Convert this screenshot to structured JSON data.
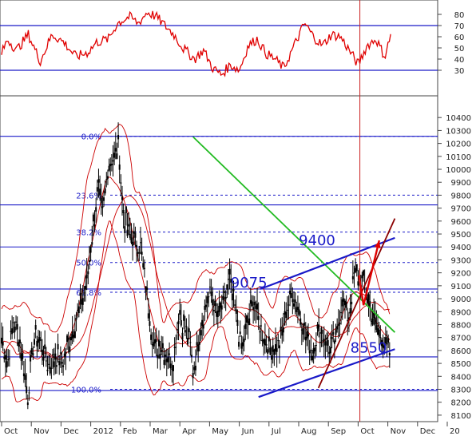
{
  "chart_data": {
    "type": "candlestick",
    "instrument": "",
    "months": [
      "Oct",
      "Nov",
      "Dec",
      "2012",
      "Feb",
      "Mar",
      "Apr",
      "May",
      "Jun",
      "Jul",
      "Aug",
      "Sep",
      "Oct",
      "Nov",
      "Dec",
      "20"
    ],
    "rsi_panel": {
      "ylim": [
        10,
        90
      ],
      "ticks": [
        30,
        40,
        50,
        60,
        70,
        80
      ],
      "levels": [
        30,
        70
      ],
      "color": "#e00000"
    },
    "price_panel": {
      "ylim": [
        8050,
        10500
      ],
      "ticks": [
        8100,
        8200,
        8300,
        8400,
        8500,
        8600,
        8700,
        8800,
        8900,
        9000,
        9100,
        9200,
        9300,
        9400,
        9500,
        9600,
        9700,
        9800,
        9900,
        10000,
        10100,
        10200,
        10300,
        10400
      ],
      "fib_levels": [
        {
          "label": "0.0%",
          "value": 10255
        },
        {
          "label": "23.6%",
          "value": 9800
        },
        {
          "label": "38.2%",
          "value": 9515
        },
        {
          "label": "50.0%",
          "value": 9280
        },
        {
          "label": "61.8%",
          "value": 9050
        },
        {
          "label": "100.0%",
          "value": 8300
        }
      ],
      "horizontal_levels": [
        10255,
        9725,
        9400,
        9075,
        8550,
        8290
      ],
      "annotations": [
        {
          "text": "9400",
          "x": 34.0,
          "y": 9450
        },
        {
          "text": "9075",
          "x": 26.6,
          "y": 9125
        },
        {
          "text": "8550",
          "x": 39.6,
          "y": 8620
        }
      ],
      "trend_lines": [
        {
          "name": "",
          "color": "#22bb22",
          "points": [
            [
              20.8,
              10250
            ],
            [
              42.7,
              8740
            ]
          ]
        },
        {
          "name": "",
          "color": "#1a1ac8",
          "points": [
            [
              28.1,
              9075
            ],
            [
              42.7,
              9470
            ]
          ]
        },
        {
          "name": "",
          "color": "#1a1ac8",
          "points": [
            [
              27.9,
              8240
            ],
            [
              42.7,
              8610
            ]
          ]
        },
        {
          "name": "",
          "color": "#8b0000",
          "points": [
            [
              34.4,
              8310
            ],
            [
              42.7,
              9620
            ]
          ]
        }
      ],
      "forecast_path": {
        "color": "#e00000",
        "points": [
          [
            38.8,
            9180
          ],
          [
            39.3,
            8950
          ],
          [
            41.0,
            9450
          ]
        ]
      },
      "cursor_x": 38.9,
      "bollinger_color": "#cc0000",
      "candle_color": "#000000"
    }
  }
}
